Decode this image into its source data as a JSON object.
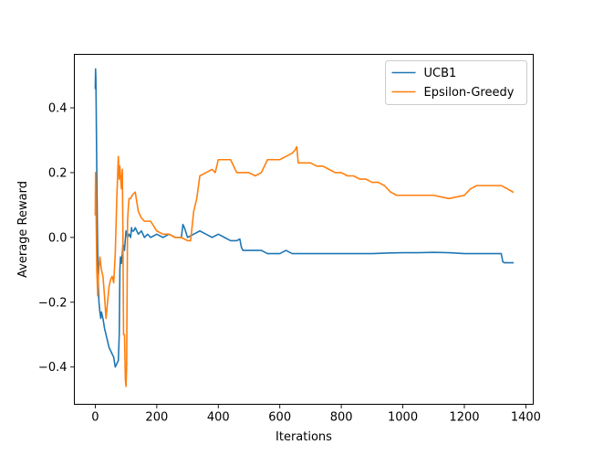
{
  "chart_data": {
    "type": "line",
    "title": "",
    "xlabel": "Iterations",
    "ylabel": "Average Reward",
    "xlim": [
      -68,
      1424
    ],
    "ylim": [
      -0.515,
      0.565
    ],
    "xticks": [
      0,
      200,
      400,
      600,
      800,
      1000,
      1200,
      1400
    ],
    "yticks": [
      -0.4,
      -0.2,
      0.0,
      0.2,
      0.4
    ],
    "xtick_labels": [
      "0",
      "200",
      "400",
      "600",
      "800",
      "1000",
      "1200",
      "1400"
    ],
    "ytick_labels": [
      "−0.4",
      "−0.2",
      "0.0",
      "0.2",
      "0.4"
    ],
    "grid": false,
    "legend_position": "top-right",
    "series": [
      {
        "name": "UCB1",
        "color": "#1f77b4",
        "x": [
          0,
          1,
          2,
          3,
          4,
          6,
          8,
          10,
          12,
          15,
          18,
          20,
          25,
          30,
          35,
          40,
          45,
          50,
          55,
          60,
          65,
          70,
          75,
          78,
          80,
          82,
          85,
          88,
          90,
          95,
          100,
          105,
          110,
          115,
          118,
          120,
          125,
          130,
          140,
          150,
          160,
          170,
          180,
          200,
          220,
          240,
          260,
          280,
          285,
          290,
          300,
          320,
          340,
          360,
          380,
          400,
          420,
          440,
          460,
          470,
          475,
          480,
          500,
          540,
          560,
          600,
          620,
          640,
          660,
          700,
          750,
          800,
          850,
          900,
          950,
          1000,
          1050,
          1100,
          1150,
          1200,
          1250,
          1300,
          1320,
          1325,
          1330,
          1358
        ],
        "y": [
          0.46,
          0.52,
          0.49,
          0.4,
          0.3,
          0.1,
          -0.05,
          -0.15,
          -0.2,
          -0.23,
          -0.25,
          -0.23,
          -0.25,
          -0.28,
          -0.3,
          -0.32,
          -0.34,
          -0.35,
          -0.36,
          -0.37,
          -0.4,
          -0.39,
          -0.38,
          -0.3,
          -0.1,
          -0.06,
          -0.08,
          -0.05,
          -0.02,
          -0.04,
          0.02,
          0.0,
          0.01,
          0.0,
          0.03,
          0.02,
          0.02,
          0.03,
          0.01,
          0.02,
          0.0,
          0.01,
          0.0,
          0.01,
          0.0,
          0.01,
          0.0,
          0.0,
          0.04,
          0.03,
          0.0,
          0.01,
          0.02,
          0.01,
          0.0,
          0.01,
          0.0,
          -0.01,
          -0.01,
          -0.005,
          -0.03,
          -0.04,
          -0.04,
          -0.04,
          -0.05,
          -0.05,
          -0.04,
          -0.05,
          -0.05,
          -0.05,
          -0.05,
          -0.05,
          -0.05,
          -0.05,
          -0.048,
          -0.047,
          -0.047,
          -0.046,
          -0.047,
          -0.05,
          -0.05,
          -0.05,
          -0.05,
          -0.075,
          -0.078,
          -0.078
        ]
      },
      {
        "name": "Epsilon-Greedy",
        "color": "#ff7f0e",
        "x": [
          0,
          1,
          2,
          3,
          5,
          8,
          10,
          15,
          20,
          25,
          30,
          35,
          40,
          45,
          50,
          55,
          60,
          65,
          70,
          75,
          78,
          80,
          85,
          88,
          90,
          92,
          95,
          98,
          100,
          102,
          105,
          108,
          110,
          115,
          120,
          130,
          140,
          150,
          160,
          170,
          180,
          200,
          220,
          240,
          260,
          280,
          300,
          310,
          320,
          330,
          340,
          360,
          380,
          390,
          400,
          420,
          440,
          460,
          480,
          500,
          520,
          540,
          560,
          580,
          600,
          620,
          640,
          650,
          655,
          660,
          680,
          700,
          720,
          740,
          760,
          780,
          800,
          820,
          840,
          860,
          880,
          900,
          920,
          940,
          960,
          980,
          1000,
          1050,
          1100,
          1150,
          1200,
          1220,
          1240,
          1260,
          1280,
          1300,
          1320,
          1340,
          1358
        ],
        "y": [
          0.07,
          0.2,
          0.15,
          0.05,
          -0.1,
          -0.18,
          -0.12,
          -0.06,
          -0.1,
          -0.12,
          -0.18,
          -0.25,
          -0.2,
          -0.15,
          -0.13,
          -0.12,
          -0.14,
          -0.05,
          0.12,
          0.25,
          0.18,
          0.22,
          0.15,
          0.21,
          0.0,
          -0.3,
          -0.3,
          -0.44,
          -0.46,
          -0.4,
          0.05,
          0.1,
          0.12,
          0.12,
          0.13,
          0.14,
          0.08,
          0.06,
          0.05,
          0.05,
          0.05,
          0.02,
          0.01,
          0.01,
          0.0,
          0.0,
          -0.01,
          -0.01,
          0.08,
          0.12,
          0.19,
          0.2,
          0.21,
          0.2,
          0.24,
          0.24,
          0.24,
          0.2,
          0.2,
          0.2,
          0.19,
          0.2,
          0.24,
          0.24,
          0.24,
          0.25,
          0.26,
          0.27,
          0.28,
          0.23,
          0.23,
          0.23,
          0.22,
          0.22,
          0.21,
          0.2,
          0.2,
          0.19,
          0.19,
          0.18,
          0.18,
          0.17,
          0.17,
          0.16,
          0.14,
          0.13,
          0.13,
          0.13,
          0.13,
          0.12,
          0.13,
          0.15,
          0.16,
          0.16,
          0.16,
          0.16,
          0.16,
          0.15,
          0.14
        ]
      }
    ]
  }
}
